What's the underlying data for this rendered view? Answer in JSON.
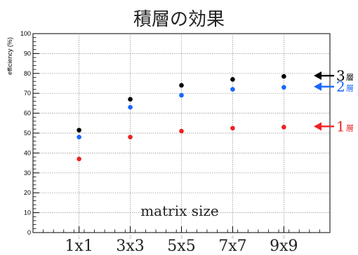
{
  "chart_data": {
    "type": "scatter",
    "title": "積層の効果",
    "xlabel": "matrix size",
    "ylabel": "efficiency (%)",
    "categories": [
      "1x1",
      "3x3",
      "5x5",
      "7x7",
      "9x9"
    ],
    "x": [
      1,
      2,
      3,
      4,
      5
    ],
    "xlim": [
      0.1,
      5.9
    ],
    "ylim": [
      0,
      100
    ],
    "y_ticks": [
      "0",
      "10",
      "20",
      "30",
      "40",
      "50",
      "60",
      "70",
      "80",
      "90",
      "100"
    ],
    "x_ticks": [
      "1",
      "2",
      "3",
      "4",
      "5"
    ],
    "grid": true,
    "series": [
      {
        "name": "1層",
        "label_number": "1",
        "label_suffix": "層",
        "color": "#ee2222",
        "values": [
          37,
          48,
          51,
          52.5,
          53
        ]
      },
      {
        "name": "2層",
        "label_number": "2",
        "label_suffix": "層",
        "color": "#1a66ff",
        "values": [
          48,
          63,
          69,
          72,
          73
        ]
      },
      {
        "name": "3層",
        "label_number": "3",
        "label_suffix": "層",
        "color": "#000000",
        "values": [
          51.5,
          67,
          74,
          77,
          78.5
        ]
      }
    ]
  }
}
